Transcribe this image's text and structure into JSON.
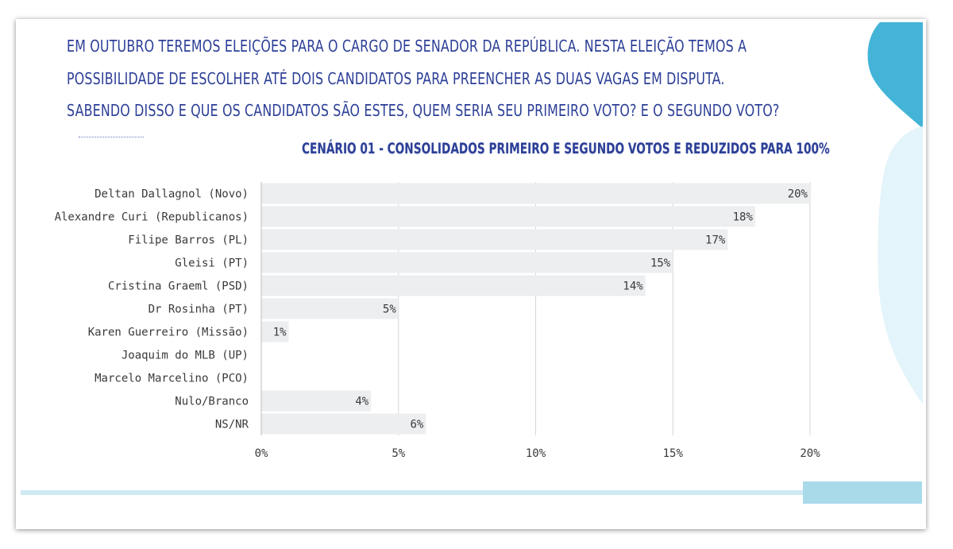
{
  "question": {
    "line1": "EM OUTUBRO TEREMOS ELEIÇÕES PARA O CARGO DE SENADOR DA REPÚBLICA. NESTA ELEIÇÃO TEMOS A",
    "line2": "POSSIBILIDADE DE ESCOLHER ATÉ DOIS CANDIDATOS PARA PREENCHER AS DUAS VAGAS EM DISPUTA.",
    "line3": "SABENDO DISSO E QUE OS CANDIDATOS SÃO ESTES, QUEM SERIA SEU PRIMEIRO VOTO? E O SEGUNDO VOTO?"
  },
  "colors": {
    "text_blue": "#2c3f97",
    "bar_fill": "#eceeef",
    "grid": "#d6d6d6",
    "accent_light": "#cfeaf3",
    "accent_mid": "#a9daea",
    "accent_dark": "#43b4d8"
  },
  "chart_data": {
    "type": "bar",
    "orientation": "horizontal",
    "title": "CENÁRIO 01 - CONSOLIDADOS PRIMEIRO E SEGUNDO VOTOS E REDUZIDOS PARA 100%",
    "categories": [
      "Deltan Dallagnol (Novo)",
      "Alexandre Curi (Republicanos)",
      "Filipe Barros (PL)",
      "Gleisi (PT)",
      "Cristina Graeml (PSD)",
      "Dr Rosinha (PT)",
      "Karen Guerreiro (Missão)",
      "Joaquim do MLB (UP)",
      "Marcelo Marcelino (PCO)",
      "Nulo/Branco",
      "NS/NR"
    ],
    "values": [
      20,
      18,
      17,
      15,
      14,
      5,
      1,
      0,
      0,
      4,
      6
    ],
    "value_labels": [
      "20%",
      "18%",
      "17%",
      "15%",
      "14%",
      "5%",
      "1%",
      "",
      "",
      "4%",
      "6%"
    ],
    "xlim": [
      0,
      20
    ],
    "x_ticks": [
      "0%",
      "5%",
      "10%",
      "15%",
      "20%"
    ],
    "grid": true,
    "legend": "none"
  }
}
